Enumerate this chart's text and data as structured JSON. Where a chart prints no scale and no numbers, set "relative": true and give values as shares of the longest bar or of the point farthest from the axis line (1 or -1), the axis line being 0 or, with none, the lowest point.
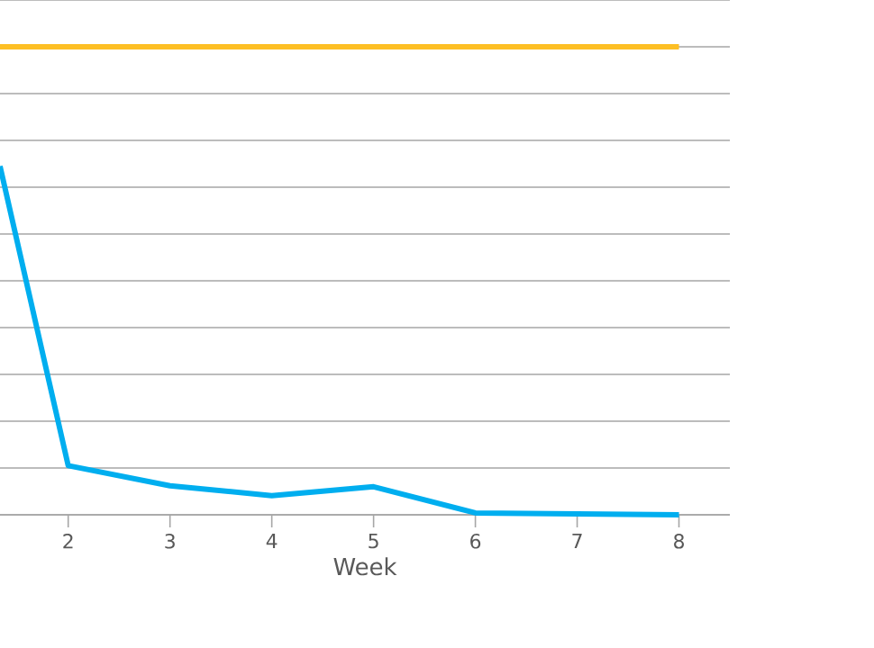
{
  "chart_data": {
    "type": "line",
    "relative": true,
    "xlabel": "Week",
    "x": [
      1.33,
      2,
      3,
      4,
      5,
      6,
      7,
      8
    ],
    "xlim": [
      1.33,
      8.5
    ],
    "xticks": [
      2,
      3,
      4,
      5,
      6,
      7,
      8
    ],
    "grid": "y",
    "tick_labels": "x",
    "marker": "none",
    "line_style": "solid",
    "series": [
      {
        "color": "#00aeef",
        "values": [
          0.745,
          0.105,
          0.062,
          0.041,
          0.06,
          0.004,
          0.002,
          0
        ]
      },
      {
        "color": "#fdbf24",
        "values": [
          1,
          1,
          1,
          1,
          1,
          1,
          1,
          1
        ]
      }
    ]
  }
}
